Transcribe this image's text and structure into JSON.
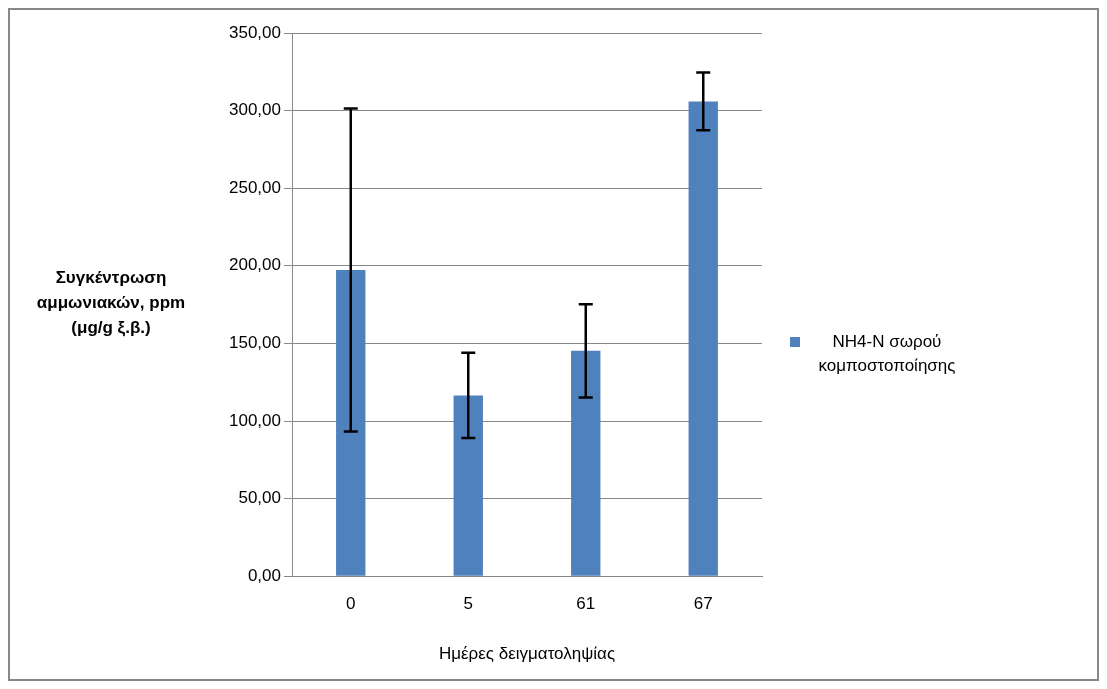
{
  "chart_data": {
    "type": "bar",
    "xlabel": "Ημέρες δειγματοληψίας",
    "ylabel": "Συγκέντρωση αμμωνιακών, ppm (μg/g ξ.β.)",
    "categories": [
      "0",
      "5",
      "61",
      "67"
    ],
    "series": [
      {
        "name": "NH4-N σωρού κομποστοποίησης",
        "color": "#4f81bd",
        "values": [
          197.3,
          116.5,
          145.2,
          305.9
        ],
        "errors": [
          104,
          27.5,
          30,
          18.6
        ]
      }
    ],
    "ylim": [
      0,
      350
    ],
    "yticks": [
      {
        "value": 0,
        "label": "0,00"
      },
      {
        "value": 50,
        "label": "50,00"
      },
      {
        "value": 100,
        "label": "100,00"
      },
      {
        "value": 150,
        "label": "150,00"
      },
      {
        "value": 200,
        "label": "200,00"
      },
      {
        "value": 250,
        "label": "250,00"
      },
      {
        "value": 300,
        "label": "300,00"
      },
      {
        "value": 350,
        "label": "350,00"
      }
    ],
    "grid": "y",
    "legend": "right"
  }
}
